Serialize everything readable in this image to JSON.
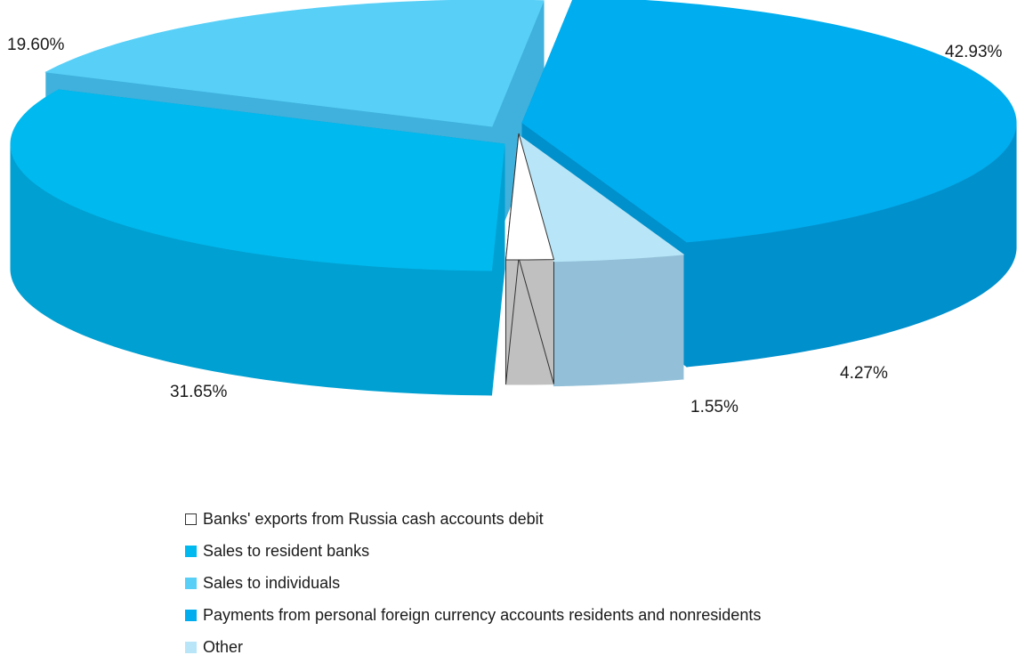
{
  "chart_data": {
    "type": "pie",
    "title": "",
    "style": "3d-exploded",
    "slices": [
      {
        "label": "Banks' exports from Russia cash accounts debit",
        "value": 1.55,
        "value_label": "1.55%",
        "color": "#ffffff",
        "side_color": "#c0c0c0"
      },
      {
        "label": "Sales to resident banks",
        "value": 31.65,
        "value_label": "31.65%",
        "color": "#00b9ee",
        "side_color": "#00a0d2"
      },
      {
        "label": "Sales to individuals",
        "value": 19.6,
        "value_label": "19.60%",
        "color": "#58cff7",
        "side_color": "#3fb1dc"
      },
      {
        "label": "Payments from personal foreign currency accounts  residents and nonresidents",
        "value": 42.93,
        "value_label": "42.93%",
        "color": "#00adee",
        "side_color": "#0090cc"
      },
      {
        "label": "Other",
        "value": 4.27,
        "value_label": "4.27%",
        "color": "#b8e6f8",
        "side_color": "#93c0d8"
      }
    ],
    "legend_position": "bottom"
  }
}
